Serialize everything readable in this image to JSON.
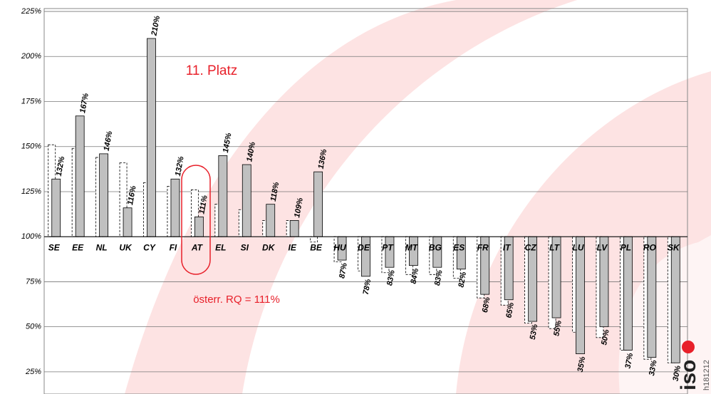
{
  "chart_data": {
    "type": "bar",
    "categories": [
      "SE",
      "EE",
      "NL",
      "UK",
      "CY",
      "FI",
      "AT",
      "EL",
      "SI",
      "DK",
      "IE",
      "BE",
      "HU",
      "DE",
      "PT",
      "MT",
      "BG",
      "ES",
      "FR",
      "IT",
      "CZ",
      "LT",
      "LU",
      "LV",
      "PL",
      "RO",
      "SK"
    ],
    "baseline": 100,
    "series": [
      {
        "color": "#ffffff",
        "values": [
          151,
          149,
          144,
          141,
          130,
          128,
          126,
          118,
          115,
          109,
          109,
          97,
          86,
          81,
          80,
          79,
          79,
          77,
          66,
          62,
          52,
          49,
          47,
          44,
          37,
          32,
          30
        ]
      },
      {
        "color": "#c0c0c0",
        "values": [
          132,
          167,
          146,
          116,
          210,
          132,
          111,
          145,
          140,
          118,
          109,
          136,
          87,
          78,
          83,
          84,
          83,
          82,
          68,
          65,
          53,
          55,
          35,
          50,
          37,
          33,
          30
        ],
        "value_labels": [
          "132%",
          "167%",
          "146%",
          "116%",
          "210%",
          "132%",
          "111%",
          "145%",
          "140%",
          "118%",
          "109%",
          "136%",
          "87%",
          "78%",
          "83%",
          "84%",
          "83%",
          "82%",
          "68%",
          "65%",
          "53%",
          "55%",
          "35%",
          "50%",
          "37%",
          "33%",
          "30%"
        ]
      }
    ],
    "ylim": [
      12.7,
      226.6
    ],
    "yticks": [
      {
        "value": 25,
        "label": "25%"
      },
      {
        "value": 50,
        "label": "50%"
      },
      {
        "value": 75,
        "label": "75%"
      },
      {
        "value": 100,
        "label": "100%"
      },
      {
        "value": 125,
        "label": "125%"
      },
      {
        "value": 150,
        "label": "150%"
      },
      {
        "value": 175,
        "label": "175%"
      },
      {
        "value": 200,
        "label": "200%"
      },
      {
        "value": 225,
        "label": "225%"
      }
    ],
    "grid": true,
    "annotations": [
      "11. Platz",
      "österr. RQ = 111%"
    ],
    "logo": "iso",
    "code": "h181212"
  }
}
